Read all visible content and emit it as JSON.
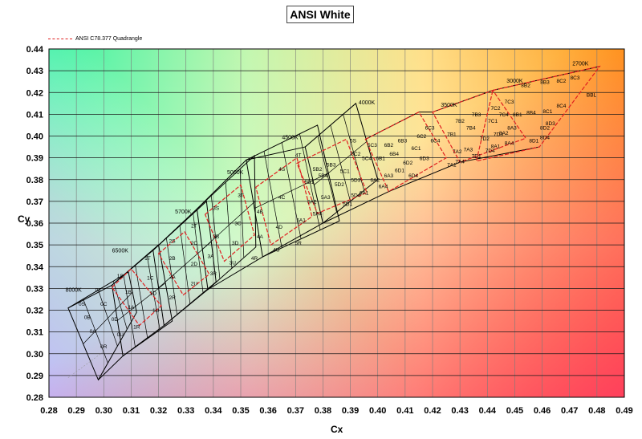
{
  "chart_data": {
    "type": "scatter",
    "title": "ANSI White",
    "xlabel": "Cx",
    "ylabel": "Cy",
    "xlim": [
      0.28,
      0.49
    ],
    "ylim": [
      0.28,
      0.44
    ],
    "xticks": [
      "0.28",
      "0.29",
      "0.30",
      "0.31",
      "0.32",
      "0.33",
      "0.34",
      "0.35",
      "0.36",
      "0.37",
      "0.38",
      "0.39",
      "0.40",
      "0.41",
      "0.42",
      "0.43",
      "0.44",
      "0.45",
      "0.46",
      "0.47",
      "0.48",
      "0.49"
    ],
    "yticks": [
      "0.28",
      "0.29",
      "0.30",
      "0.31",
      "0.32",
      "0.33",
      "0.34",
      "0.35",
      "0.36",
      "0.37",
      "0.38",
      "0.39",
      "0.40",
      "0.41",
      "0.42",
      "0.43",
      "0.44"
    ],
    "grid": true,
    "legend": {
      "position": "top-left",
      "entries": [
        "ANSI C78.377 Quadrangle"
      ]
    },
    "cct_labels": [
      {
        "text": "8000K",
        "x": 0.289,
        "y": 0.3285
      },
      {
        "text": "6500K",
        "x": 0.306,
        "y": 0.3465
      },
      {
        "text": "5700K",
        "x": 0.329,
        "y": 0.3645
      },
      {
        "text": "5000K",
        "x": 0.348,
        "y": 0.3825
      },
      {
        "text": "4500K",
        "x": 0.368,
        "y": 0.3985
      },
      {
        "text": "4000K",
        "x": 0.396,
        "y": 0.4145
      },
      {
        "text": "3500K",
        "x": 0.426,
        "y": 0.4135
      },
      {
        "text": "3000K",
        "x": 0.45,
        "y": 0.4245
      },
      {
        "text": "2700K",
        "x": 0.474,
        "y": 0.4325
      }
    ],
    "bin_labels": [
      {
        "t": "0S",
        "x": 0.292,
        "y": 0.322
      },
      {
        "t": "0T",
        "x": 0.298,
        "y": 0.3285
      },
      {
        "t": "0C",
        "x": 0.3,
        "y": 0.322
      },
      {
        "t": "0B",
        "x": 0.294,
        "y": 0.316
      },
      {
        "t": "0D",
        "x": 0.304,
        "y": 0.315
      },
      {
        "t": "0A",
        "x": 0.296,
        "y": 0.3095
      },
      {
        "t": "0U",
        "x": 0.306,
        "y": 0.308
      },
      {
        "t": "0R",
        "x": 0.3,
        "y": 0.3025
      },
      {
        "t": "1S",
        "x": 0.306,
        "y": 0.335
      },
      {
        "t": "1T",
        "x": 0.316,
        "y": 0.343
      },
      {
        "t": "1B",
        "x": 0.309,
        "y": 0.3275
      },
      {
        "t": "1C",
        "x": 0.317,
        "y": 0.334
      },
      {
        "t": "1A",
        "x": 0.31,
        "y": 0.3205
      },
      {
        "t": "1D",
        "x": 0.318,
        "y": 0.327
      },
      {
        "t": "1R",
        "x": 0.312,
        "y": 0.3115
      },
      {
        "t": "1U",
        "x": 0.319,
        "y": 0.319
      },
      {
        "t": "2S",
        "x": 0.325,
        "y": 0.351
      },
      {
        "t": "2T",
        "x": 0.333,
        "y": 0.358
      },
      {
        "t": "2B",
        "x": 0.325,
        "y": 0.343
      },
      {
        "t": "2C",
        "x": 0.333,
        "y": 0.35
      },
      {
        "t": "2A",
        "x": 0.325,
        "y": 0.3345
      },
      {
        "t": "2D",
        "x": 0.333,
        "y": 0.3405
      },
      {
        "t": "2R",
        "x": 0.325,
        "y": 0.325
      },
      {
        "t": "2U",
        "x": 0.333,
        "y": 0.3315
      },
      {
        "t": "3S",
        "x": 0.341,
        "y": 0.366
      },
      {
        "t": "3T",
        "x": 0.35,
        "y": 0.372
      },
      {
        "t": "3B",
        "x": 0.341,
        "y": 0.353
      },
      {
        "t": "3C",
        "x": 0.349,
        "y": 0.359
      },
      {
        "t": "3A",
        "x": 0.339,
        "y": 0.344
      },
      {
        "t": "3D",
        "x": 0.348,
        "y": 0.35
      },
      {
        "t": "3R",
        "x": 0.34,
        "y": 0.336
      },
      {
        "t": "3U",
        "x": 0.347,
        "y": 0.341
      },
      {
        "t": "4S",
        "x": 0.365,
        "y": 0.384
      },
      {
        "t": "4T",
        "x": 0.371,
        "y": 0.3905
      },
      {
        "t": "4B",
        "x": 0.357,
        "y": 0.3645
      },
      {
        "t": "4C",
        "x": 0.365,
        "y": 0.371
      },
      {
        "t": "4A",
        "x": 0.357,
        "y": 0.353
      },
      {
        "t": "4D",
        "x": 0.364,
        "y": 0.3575
      },
      {
        "t": "4R",
        "x": 0.355,
        "y": 0.343
      },
      {
        "t": "4U",
        "x": 0.363,
        "y": 0.347
      },
      {
        "t": "5S",
        "x": 0.391,
        "y": 0.397
      },
      {
        "t": "5R",
        "x": 0.371,
        "y": 0.35
      },
      {
        "t": "5A1",
        "x": 0.372,
        "y": 0.3605
      },
      {
        "t": "5A2",
        "x": 0.376,
        "y": 0.369
      },
      {
        "t": "5A3",
        "x": 0.381,
        "y": 0.371
      },
      {
        "t": "5A4",
        "x": 0.378,
        "y": 0.3635
      },
      {
        "t": "5B1",
        "x": 0.375,
        "y": 0.378
      },
      {
        "t": "5B2",
        "x": 0.378,
        "y": 0.384
      },
      {
        "t": "5B3",
        "x": 0.383,
        "y": 0.386
      },
      {
        "t": "5B4",
        "x": 0.38,
        "y": 0.381
      },
      {
        "t": "5C1",
        "x": 0.388,
        "y": 0.383
      },
      {
        "t": "5C2",
        "x": 0.392,
        "y": 0.391
      },
      {
        "t": "5C3",
        "x": 0.398,
        "y": 0.395
      },
      {
        "t": "5C4",
        "x": 0.396,
        "y": 0.389
      },
      {
        "t": "5D1",
        "x": 0.389,
        "y": 0.368
      },
      {
        "t": "5D2",
        "x": 0.386,
        "y": 0.377
      },
      {
        "t": "5D3",
        "x": 0.392,
        "y": 0.379
      },
      {
        "t": "5D4",
        "x": 0.392,
        "y": 0.372
      },
      {
        "t": "6A1",
        "x": 0.395,
        "y": 0.373
      },
      {
        "t": "6A2",
        "x": 0.399,
        "y": 0.379
      },
      {
        "t": "6A3",
        "x": 0.404,
        "y": 0.381
      },
      {
        "t": "6A4",
        "x": 0.402,
        "y": 0.376
      },
      {
        "t": "6B1",
        "x": 0.401,
        "y": 0.389
      },
      {
        "t": "6B2",
        "x": 0.404,
        "y": 0.395
      },
      {
        "t": "6B3",
        "x": 0.409,
        "y": 0.397
      },
      {
        "t": "6B4",
        "x": 0.406,
        "y": 0.391
      },
      {
        "t": "6C1",
        "x": 0.414,
        "y": 0.3935
      },
      {
        "t": "6C2",
        "x": 0.416,
        "y": 0.399
      },
      {
        "t": "6C3",
        "x": 0.419,
        "y": 0.403
      },
      {
        "t": "6C4",
        "x": 0.421,
        "y": 0.397
      },
      {
        "t": "6D1",
        "x": 0.408,
        "y": 0.3835
      },
      {
        "t": "6D2",
        "x": 0.411,
        "y": 0.387
      },
      {
        "t": "6D3",
        "x": 0.417,
        "y": 0.389
      },
      {
        "t": "6D4",
        "x": 0.413,
        "y": 0.381
      },
      {
        "t": "7A1",
        "x": 0.427,
        "y": 0.386
      },
      {
        "t": "7A2",
        "x": 0.429,
        "y": 0.392
      },
      {
        "t": "7A3",
        "x": 0.433,
        "y": 0.393
      },
      {
        "t": "7A4",
        "x": 0.43,
        "y": 0.3875
      },
      {
        "t": "7B1",
        "x": 0.427,
        "y": 0.4
      },
      {
        "t": "7B2",
        "x": 0.43,
        "y": 0.406
      },
      {
        "t": "7B3",
        "x": 0.436,
        "y": 0.409
      },
      {
        "t": "7B4",
        "x": 0.434,
        "y": 0.403
      },
      {
        "t": "7C1",
        "x": 0.442,
        "y": 0.406
      },
      {
        "t": "7C2",
        "x": 0.443,
        "y": 0.412
      },
      {
        "t": "7C3",
        "x": 0.448,
        "y": 0.415
      },
      {
        "t": "7C4",
        "x": 0.446,
        "y": 0.409
      },
      {
        "t": "7D1",
        "x": 0.436,
        "y": 0.39
      },
      {
        "t": "7D2",
        "x": 0.439,
        "y": 0.398
      },
      {
        "t": "7D3",
        "x": 0.444,
        "y": 0.4
      },
      {
        "t": "7D4",
        "x": 0.441,
        "y": 0.3925
      },
      {
        "t": "8A1",
        "x": 0.443,
        "y": 0.3945
      },
      {
        "t": "8A2",
        "x": 0.446,
        "y": 0.4005
      },
      {
        "t": "8A3",
        "x": 0.449,
        "y": 0.403
      },
      {
        "t": "8A4",
        "x": 0.448,
        "y": 0.396
      },
      {
        "t": "8B1",
        "x": 0.451,
        "y": 0.409
      },
      {
        "t": "8B2",
        "x": 0.454,
        "y": 0.4225
      },
      {
        "t": "8B3",
        "x": 0.461,
        "y": 0.424
      },
      {
        "t": "8B4",
        "x": 0.456,
        "y": 0.41
      },
      {
        "t": "8C1",
        "x": 0.462,
        "y": 0.4105
      },
      {
        "t": "8C2",
        "x": 0.467,
        "y": 0.4245
      },
      {
        "t": "8C3",
        "x": 0.472,
        "y": 0.426
      },
      {
        "t": "8C4",
        "x": 0.467,
        "y": 0.413
      },
      {
        "t": "8D1",
        "x": 0.457,
        "y": 0.397
      },
      {
        "t": "8D2",
        "x": 0.461,
        "y": 0.403
      },
      {
        "t": "8D3",
        "x": 0.463,
        "y": 0.405
      },
      {
        "t": "8D4",
        "x": 0.461,
        "y": 0.3985
      },
      {
        "t": "BBL",
        "x": 0.478,
        "y": 0.418
      }
    ],
    "black_quadrangles": [
      {
        "name": "8000K",
        "pts": [
          [
            0.287,
            0.321
          ],
          [
            0.309,
            0.3375
          ],
          [
            0.312,
            0.319
          ],
          [
            0.298,
            0.288
          ]
        ]
      },
      {
        "name": "6500K",
        "pts": [
          [
            0.303,
            0.3315
          ],
          [
            0.32,
            0.35
          ],
          [
            0.325,
            0.315
          ],
          [
            0.307,
            0.299
          ]
        ]
      },
      {
        "name": "5700K",
        "pts": [
          [
            0.318,
            0.3475
          ],
          [
            0.3375,
            0.37
          ],
          [
            0.341,
            0.333
          ],
          [
            0.322,
            0.313
          ]
        ]
      },
      {
        "name": "5000K",
        "pts": [
          [
            0.334,
            0.3665
          ],
          [
            0.355,
            0.391
          ],
          [
            0.3555,
            0.349
          ],
          [
            0.338,
            0.3295
          ]
        ]
      },
      {
        "name": "4500K",
        "pts": [
          [
            0.352,
            0.389
          ],
          [
            0.378,
            0.405
          ],
          [
            0.386,
            0.361
          ],
          [
            0.358,
            0.3445
          ]
        ]
      },
      {
        "name": "4000K",
        "pts": [
          [
            0.3735,
            0.395
          ],
          [
            0.392,
            0.415
          ],
          [
            0.4,
            0.38
          ],
          [
            0.38,
            0.36
          ]
        ]
      }
    ],
    "red_quadrangles": [
      {
        "name": "6500K",
        "pts": [
          [
            0.303,
            0.3305
          ],
          [
            0.31,
            0.339
          ],
          [
            0.321,
            0.322
          ],
          [
            0.313,
            0.313
          ]
        ]
      },
      {
        "name": "5700K",
        "pts": [
          [
            0.32,
            0.346
          ],
          [
            0.3295,
            0.356
          ],
          [
            0.3385,
            0.3365
          ],
          [
            0.329,
            0.327
          ]
        ]
      },
      {
        "name": "5000K",
        "pts": [
          [
            0.337,
            0.364
          ],
          [
            0.35,
            0.3775
          ],
          [
            0.355,
            0.3545
          ],
          [
            0.344,
            0.3425
          ]
        ]
      },
      {
        "name": "4500K",
        "pts": [
          [
            0.3555,
            0.3765
          ],
          [
            0.3705,
            0.39
          ],
          [
            0.376,
            0.363
          ],
          [
            0.361,
            0.35
          ]
        ]
      },
      {
        "name": "4000K",
        "pts": [
          [
            0.3705,
            0.3875
          ],
          [
            0.3885,
            0.3985
          ],
          [
            0.396,
            0.374
          ],
          [
            0.378,
            0.3645
          ]
        ]
      },
      {
        "name": "3500K",
        "pts": [
          [
            0.3955,
            0.3985
          ],
          [
            0.415,
            0.411
          ],
          [
            0.425,
            0.39
          ],
          [
            0.404,
            0.3745
          ]
        ]
      },
      {
        "name": "3000K",
        "pts": [
          [
            0.42,
            0.411
          ],
          [
            0.442,
            0.421
          ],
          [
            0.454,
            0.399
          ],
          [
            0.43,
            0.388
          ]
        ]
      },
      {
        "name": "2700K",
        "pts": [
          [
            0.442,
            0.421
          ],
          [
            0.481,
            0.432
          ],
          [
            0.459,
            0.395
          ],
          [
            0.436,
            0.3885
          ]
        ]
      }
    ],
    "planckian_segments": [
      [
        [
          0.287,
          0.321
        ],
        [
          0.303,
          0.3315
        ],
        [
          0.318,
          0.3475
        ],
        [
          0.334,
          0.3665
        ],
        [
          0.352,
          0.389
        ],
        [
          0.3735,
          0.395
        ]
      ],
      [
        [
          0.3955,
          0.3985
        ],
        [
          0.415,
          0.411
        ],
        [
          0.42,
          0.411
        ],
        [
          0.442,
          0.421
        ],
        [
          0.481,
          0.432
        ]
      ],
      [
        [
          0.298,
          0.288
        ],
        [
          0.307,
          0.299
        ],
        [
          0.322,
          0.313
        ],
        [
          0.338,
          0.3295
        ],
        [
          0.358,
          0.3445
        ],
        [
          0.38,
          0.36
        ]
      ],
      [
        [
          0.38,
          0.36
        ],
        [
          0.404,
          0.3745
        ],
        [
          0.43,
          0.388
        ],
        [
          0.459,
          0.395
        ]
      ]
    ]
  }
}
